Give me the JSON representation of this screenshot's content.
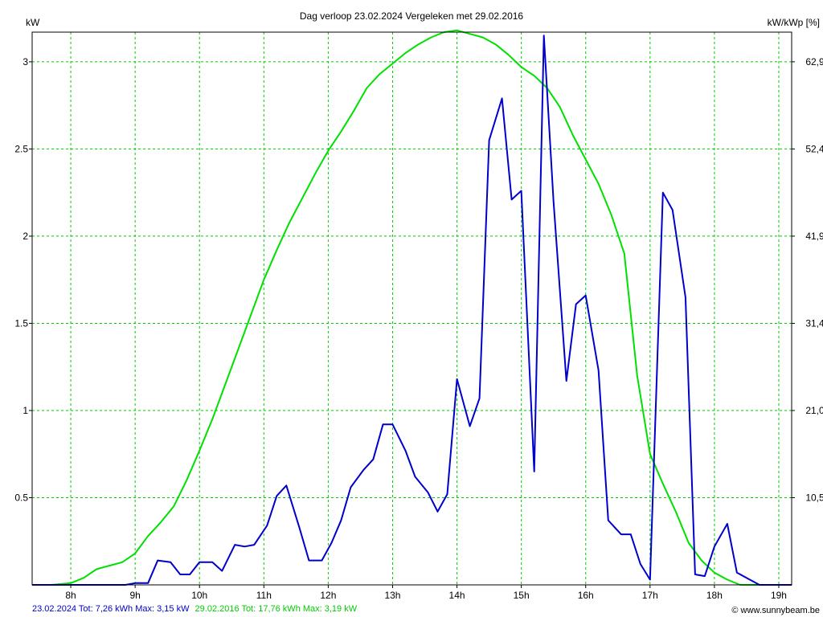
{
  "chart_data": {
    "type": "line",
    "title": "Dag  verloop 23.02.2024   Vergeleken met 29.02.2016",
    "ylabel_left": "kW",
    "ylabel_right": "kW/kWp [%]",
    "xlim": [
      7.4,
      19.2
    ],
    "ylim": [
      0,
      3.17
    ],
    "x_ticks": [
      8,
      9,
      10,
      11,
      12,
      13,
      14,
      15,
      16,
      17,
      18,
      19
    ],
    "x_tick_labels": [
      "8h",
      "9h",
      "10h",
      "11h",
      "12h",
      "13h",
      "14h",
      "15h",
      "16h",
      "17h",
      "18h",
      "19h"
    ],
    "y_ticks": [
      0.5,
      1,
      1.5,
      2,
      2.5,
      3
    ],
    "y_tick_labels": [
      "0.5",
      "1",
      "1.5",
      "2",
      "2.5",
      "3"
    ],
    "y2_tick_labels": [
      "10,5",
      "21,0",
      "31,4",
      "41,9",
      "52,4",
      "62,9"
    ],
    "grid": true,
    "series": [
      {
        "name": "23.02.2024",
        "color": "#0000cc",
        "x": [
          7.4,
          8.0,
          8.5,
          8.85,
          9.0,
          9.2,
          9.35,
          9.55,
          9.7,
          9.85,
          10.0,
          10.2,
          10.35,
          10.55,
          10.7,
          10.85,
          11.05,
          11.2,
          11.35,
          11.55,
          11.7,
          11.9,
          12.05,
          12.2,
          12.35,
          12.55,
          12.7,
          12.85,
          13.0,
          13.2,
          13.35,
          13.55,
          13.7,
          13.85,
          14.0,
          14.2,
          14.35,
          14.5,
          14.7,
          14.85,
          15.0,
          15.2,
          15.35,
          15.5,
          15.7,
          15.85,
          16.0,
          16.2,
          16.35,
          16.55,
          16.7,
          16.85,
          17.0,
          17.2,
          17.35,
          17.55,
          17.7,
          17.85,
          18.0,
          18.2,
          18.35,
          18.55,
          18.7,
          18.85,
          19.2
        ],
        "y": [
          0.0,
          0.0,
          0.0,
          0.0,
          0.01,
          0.01,
          0.14,
          0.13,
          0.06,
          0.06,
          0.13,
          0.13,
          0.08,
          0.23,
          0.22,
          0.23,
          0.34,
          0.51,
          0.57,
          0.33,
          0.14,
          0.14,
          0.24,
          0.37,
          0.56,
          0.66,
          0.72,
          0.92,
          0.92,
          0.77,
          0.62,
          0.53,
          0.42,
          0.52,
          1.18,
          0.91,
          1.07,
          2.55,
          2.79,
          2.21,
          2.26,
          0.65,
          3.15,
          2.2,
          1.17,
          1.61,
          1.66,
          1.23,
          0.37,
          0.29,
          0.29,
          0.12,
          0.03,
          2.25,
          2.15,
          1.65,
          0.06,
          0.05,
          0.22,
          0.35,
          0.07,
          0.03,
          0.0,
          0.0,
          0.0
        ]
      },
      {
        "name": "29.02.2016",
        "color": "#00e000",
        "x": [
          7.4,
          7.7,
          8.0,
          8.2,
          8.4,
          8.6,
          8.8,
          9.0,
          9.2,
          9.4,
          9.6,
          9.8,
          10.0,
          10.2,
          10.4,
          10.6,
          10.8,
          11.0,
          11.2,
          11.4,
          11.6,
          11.8,
          12.0,
          12.2,
          12.4,
          12.6,
          12.8,
          13.0,
          13.2,
          13.4,
          13.6,
          13.8,
          14.0,
          14.2,
          14.4,
          14.6,
          14.8,
          15.0,
          15.2,
          15.4,
          15.6,
          15.8,
          16.0,
          16.2,
          16.4,
          16.6,
          16.8,
          17.0,
          17.2,
          17.4,
          17.6,
          17.8,
          18.0,
          18.2,
          18.4,
          18.6,
          18.8,
          19.0,
          19.2
        ],
        "y": [
          0.0,
          0.0,
          0.01,
          0.04,
          0.09,
          0.11,
          0.13,
          0.18,
          0.28,
          0.36,
          0.45,
          0.6,
          0.77,
          0.95,
          1.15,
          1.35,
          1.55,
          1.75,
          1.92,
          2.08,
          2.22,
          2.36,
          2.49,
          2.6,
          2.72,
          2.85,
          2.93,
          2.99,
          3.05,
          3.1,
          3.14,
          3.17,
          3.18,
          3.16,
          3.14,
          3.1,
          3.04,
          2.97,
          2.92,
          2.85,
          2.74,
          2.58,
          2.44,
          2.3,
          2.12,
          1.9,
          1.2,
          0.75,
          0.58,
          0.42,
          0.24,
          0.14,
          0.07,
          0.03,
          0.0,
          0.0,
          0.0,
          0.0,
          0.0
        ]
      }
    ],
    "legend_line": {
      "part1": "23.02.2024 Tot: 7,26 kWh Max: 3,15 kW",
      "part1_color": "#0000cc",
      "part2": "29.02.2016 Tot: 17,76 kWh Max: 3,19 kW",
      "part2_color": "#00cc00"
    },
    "watermark": "© www.sunnybeam.be"
  }
}
